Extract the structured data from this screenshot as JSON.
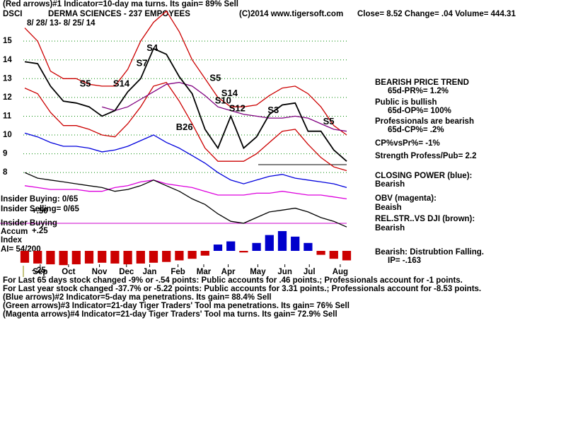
{
  "header": {
    "line1": "(Red arrows)#1 Indicator=10-day ma turns. Its gain= 89% Sell",
    "symbol": "DSCI",
    "company": "DERMA SCIENCES - 237 EMPOYEES",
    "copyright": "(C)2014 www.tigersoft.com",
    "quote": "Close=  8.52  Change= .04 Volume= 444.31",
    "date_range": "8/ 28/ 13- 8/ 25/ 14"
  },
  "side_notes": [
    "BEARISH PRICE TREND",
    "65d-PR%= 1.2%",
    "Public is bullish",
    "65d-OP%= 100%",
    "Professionals are bearish",
    "65d-CP%= .2%",
    "CP%vsPr%= -1%",
    "Strength Profess/Pub= 2.2",
    "CLOSING POWER (blue):",
    "Bearish",
    "OBV (magenta):",
    "Beaish",
    "REL.STR..VS DJI (brown):",
    "Bearish",
    "Bearish: Distrubtion Falling.",
    "IP= -.163"
  ],
  "left_notes": [
    "Insider Buying: 0/65",
    "Insider Selling= 0/65",
    "Insider Buying",
    "Accum",
    "Index",
    "AI= 54/200"
  ],
  "footer": [
    "For Last 65 days stock changed -9% or -.54 points:  Public accounts for  .46 points.;  Professionals account for -1 points.",
    "For Last year stock changed -37.7% or -5.22 points:  Public accounts for  3.31 points.;  Professionals account for -8.53 points.",
    "(Blue arrows)#2 Indicator=5-day ma penetrations. Its gain= 88.4% Sell",
    "(Green arrows)#3 Indicator=21-day Tiger Traders' Tool ma penetrations. Its gain= 76% Sell",
    "(Magenta arrows)#4 Indicator=21-day Tiger Traders' Tool ma turns. Its gain= 72.9% Sell"
  ],
  "chart_data": [
    {
      "type": "line",
      "grid": true,
      "x": [
        0,
        1,
        2,
        3,
        4,
        5,
        6,
        7,
        8,
        9,
        10,
        11,
        12,
        13,
        14,
        15,
        16,
        17,
        18,
        19,
        20,
        21,
        22,
        23,
        24,
        25
      ],
      "xlim": [
        0,
        25
      ],
      "ylim": [
        3,
        16.7
      ],
      "yticks": [
        8,
        9,
        10,
        11,
        12,
        13,
        14,
        15
      ],
      "xticks": [
        {
          "value": 1.2,
          "label": "Sep"
        },
        {
          "value": 3.4,
          "label": "Oct"
        },
        {
          "value": 5.8,
          "label": "Nov"
        },
        {
          "value": 7.9,
          "label": "Dec"
        },
        {
          "value": 9.7,
          "label": "Jan"
        },
        {
          "value": 11.9,
          "label": "Feb"
        },
        {
          "value": 13.9,
          "label": "Mar"
        },
        {
          "value": 15.8,
          "label": "Apr"
        },
        {
          "value": 18.1,
          "label": "May"
        },
        {
          "value": 20.2,
          "label": "Jun"
        },
        {
          "value": 22.1,
          "label": "Jul"
        },
        {
          "value": 24.5,
          "label": "Aug"
        }
      ],
      "series": [
        {
          "name": "Upper band",
          "color": "#cc0000",
          "values": [
            15.7,
            15.0,
            13.4,
            13.0,
            13.0,
            12.7,
            12.6,
            12.6,
            13.5,
            15.0,
            16.0,
            16.6,
            15.5,
            14.0,
            13.0,
            12.0,
            11.5,
            11.5,
            11.6,
            12.1,
            12.5,
            12.6,
            12.2,
            11.5,
            10.5,
            10.0
          ]
        },
        {
          "name": "Lower band",
          "color": "#cc0000",
          "values": [
            12.5,
            12.2,
            11.2,
            10.5,
            10.5,
            10.3,
            10.0,
            9.9,
            10.6,
            11.5,
            12.6,
            12.8,
            11.8,
            10.6,
            9.3,
            8.6,
            8.6,
            8.6,
            9.0,
            9.6,
            10.2,
            10.3,
            9.5,
            8.8,
            8.3,
            8.1
          ]
        },
        {
          "name": "21-day ma",
          "color": "#800080",
          "values": [
            null,
            null,
            null,
            null,
            null,
            null,
            11.5,
            11.3,
            11.5,
            11.9,
            12.3,
            12.7,
            12.8,
            12.6,
            12.1,
            11.5,
            11.3,
            11.1,
            11.0,
            10.9,
            10.9,
            11.0,
            10.9,
            10.6,
            10.3,
            10.2
          ]
        },
        {
          "name": "Closing Power",
          "color": "#0000dd",
          "values": [
            10.1,
            9.9,
            9.6,
            9.4,
            9.4,
            9.3,
            9.1,
            9.2,
            9.4,
            9.7,
            10.0,
            9.6,
            9.3,
            8.9,
            8.5,
            8.0,
            7.6,
            7.4,
            7.6,
            7.8,
            7.9,
            7.7,
            7.6,
            7.5,
            7.4,
            7.2
          ]
        },
        {
          "name": "OBV",
          "color": "#dd00dd",
          "values": [
            7.3,
            7.2,
            7.1,
            7.1,
            7.1,
            7.0,
            7.0,
            7.2,
            7.3,
            7.5,
            7.6,
            7.4,
            7.3,
            7.2,
            7.0,
            6.8,
            6.8,
            6.8,
            6.9,
            6.9,
            7.0,
            6.9,
            6.8,
            6.8,
            6.7,
            6.6
          ]
        },
        {
          "name": "Rel. Str. vs DJI",
          "color": "#000000",
          "values": [
            8.0,
            7.7,
            7.6,
            7.5,
            7.4,
            7.3,
            7.2,
            7.0,
            7.1,
            7.3,
            7.6,
            7.3,
            7.0,
            6.6,
            6.3,
            5.8,
            5.4,
            5.3,
            5.6,
            5.9,
            6.0,
            6.1,
            5.9,
            5.6,
            5.4,
            5.1
          ]
        },
        {
          "name": "DSCI",
          "color": "#000000",
          "values": [
            13.9,
            13.8,
            12.6,
            11.8,
            11.7,
            11.5,
            11.0,
            11.3,
            12.3,
            13.0,
            14.6,
            14.3,
            13.1,
            12.2,
            10.3,
            9.3,
            11.0,
            9.3,
            9.9,
            11.1,
            11.6,
            11.7,
            10.2,
            10.2,
            9.2,
            8.6
          ]
        }
      ],
      "annotations": [
        {
          "text": "S5",
          "x": 4.7,
          "y": 12.7
        },
        {
          "text": "S14",
          "x": 7.5,
          "y": 12.7
        },
        {
          "text": "S7",
          "x": 9.1,
          "y": 13.8
        },
        {
          "text": "S4",
          "x": 9.9,
          "y": 14.6
        },
        {
          "text": "S5",
          "x": 14.8,
          "y": 13.0
        },
        {
          "text": "S14",
          "x": 15.9,
          "y": 12.2
        },
        {
          "text": "S10",
          "x": 15.4,
          "y": 11.8
        },
        {
          "text": "S12",
          "x": 16.5,
          "y": 11.4
        },
        {
          "text": "S3",
          "x": 19.3,
          "y": 11.3
        },
        {
          "text": "S5",
          "x": 23.6,
          "y": 10.7
        },
        {
          "text": "B26",
          "x": 12.4,
          "y": 10.4
        }
      ]
    },
    {
      "type": "bar",
      "x": [
        0,
        1,
        2,
        3,
        4,
        5,
        6,
        7,
        8,
        9,
        10,
        11,
        12,
        13,
        14,
        15,
        16,
        17,
        18,
        19,
        20,
        21,
        22,
        23,
        24,
        25
      ],
      "xlim": [
        0,
        25
      ],
      "ylim": [
        -0.25,
        0.5
      ],
      "yticks": [
        {
          "value": 0.5,
          "label": "+.50"
        },
        {
          "value": 0.25,
          "label": "+.25"
        },
        {
          "value": -0.25,
          "label": "-.25"
        }
      ],
      "colors": {
        "positive": "#0000cc",
        "negative": "#cc0000"
      },
      "values": [
        -0.15,
        -0.16,
        -0.17,
        -0.18,
        -0.17,
        -0.16,
        -0.15,
        -0.16,
        -0.17,
        -0.16,
        -0.15,
        -0.14,
        -0.12,
        -0.1,
        -0.06,
        0.08,
        0.12,
        -0.02,
        0.1,
        0.2,
        0.25,
        0.18,
        0.1,
        -0.05,
        -0.1,
        -0.12
      ]
    }
  ]
}
